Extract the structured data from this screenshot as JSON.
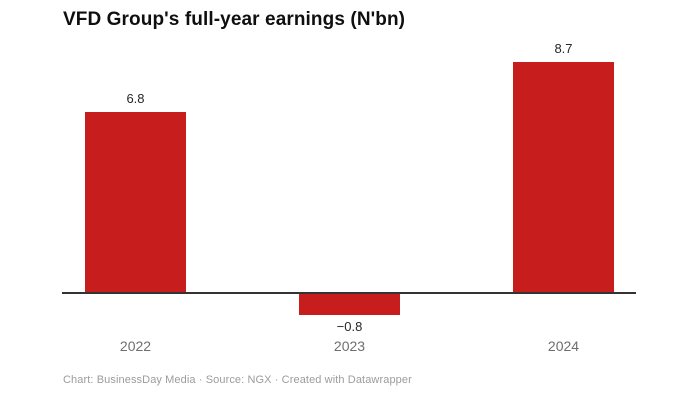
{
  "header": {
    "title": "VFD Group's full-year earnings (N'bn)"
  },
  "footer": {
    "text": "Chart: BusinessDay Media · Source: NGX · Created with Datawrapper"
  },
  "colors": {
    "background": "#ffffff",
    "bar": "#c71e1d",
    "axis_line": "#333333",
    "value_label": "#262626",
    "tick_label": "#6e6e6e",
    "footer_text": "#9c9c9c"
  },
  "chart_data": {
    "type": "bar",
    "title": "VFD Group's full-year earnings (N'bn)",
    "categories": [
      "2022",
      "2023",
      "2024"
    ],
    "values": [
      6.8,
      -0.8,
      8.7
    ],
    "value_labels": [
      "6.8",
      "−0.8",
      "8.7"
    ],
    "xlabel": "",
    "ylabel": "",
    "ylim": [
      -0.8,
      8.7
    ],
    "baseline": 0,
    "grid": false,
    "legend": "none",
    "bar_color": "#c71e1d"
  }
}
